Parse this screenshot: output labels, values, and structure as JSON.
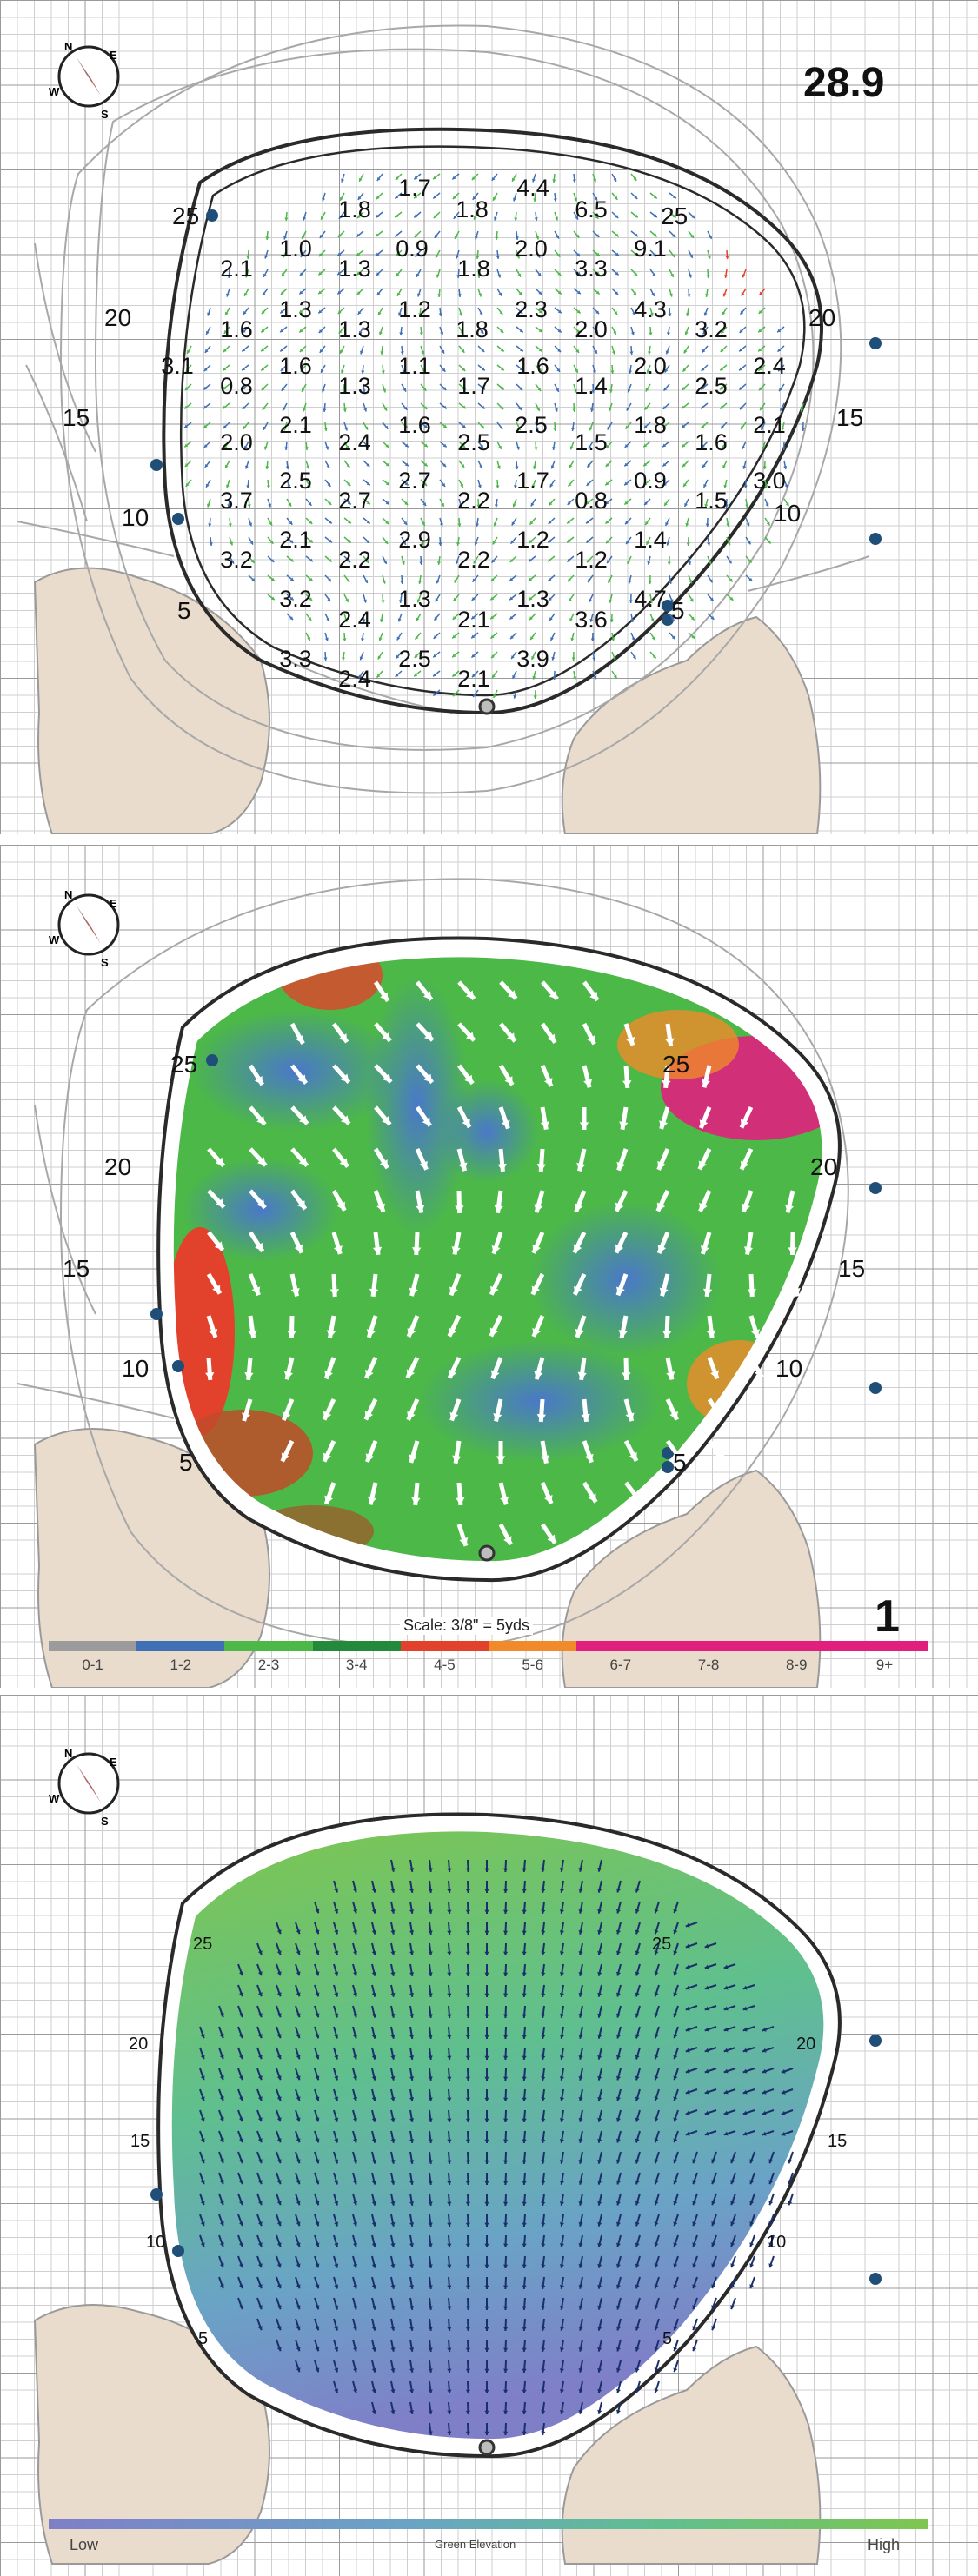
{
  "total_value": "28.9",
  "hole_number": "1",
  "compass": {
    "north": "N",
    "east": "E",
    "south": "S",
    "west": "W"
  },
  "scale_label": "Scale: 3/8\" = 5yds",
  "contour_labels_panel1": [
    "25",
    "25",
    "20",
    "20",
    "15",
    "15",
    "10",
    "10",
    "5",
    "5"
  ],
  "contour_labels_panel2": [
    "25",
    "25",
    "20",
    "20",
    "15",
    "15",
    "10",
    "10",
    "5",
    "5"
  ],
  "contour_labels_panel3": [
    "25",
    "25",
    "20",
    "20",
    "15",
    "15",
    "10",
    "10",
    "5",
    "5"
  ],
  "slope_values": [
    "1.7",
    "4.4",
    "1.8",
    "1.8",
    "6.5",
    "1.0",
    "0.9",
    "2.0",
    "9.1",
    "2.1",
    "1.3",
    "1.8",
    "3.3",
    "1.3",
    "2.3",
    "4.3",
    "1.6",
    "1.3",
    "1.2",
    "1.8",
    "2.0",
    "3.2",
    "3.1",
    "1.6",
    "1.1",
    "1.6",
    "2.0",
    "2.4",
    "0.8",
    "1.3",
    "1.7",
    "1.4",
    "2.5",
    "2.0",
    "2.1",
    "1.6",
    "2.5",
    "1.8",
    "2.1",
    "2.4",
    "2.5",
    "1.5",
    "1.6",
    "2.5",
    "2.7",
    "1.7",
    "0.9",
    "3.0",
    "3.7",
    "2.7",
    "2.2",
    "0.8",
    "1.5",
    "2.1",
    "2.9",
    "1.2",
    "1.4",
    "3.2",
    "2.2",
    "2.2",
    "1.2",
    "3.2",
    "1.3",
    "1.3",
    "4.7",
    "2.4",
    "2.1",
    "3.6",
    "3.3",
    "2.5",
    "3.9",
    "2.4",
    "2.1"
  ],
  "slope_legend": [
    {
      "label": "0-1",
      "color": "#9b9b9b"
    },
    {
      "label": "1-2",
      "color": "#3f6fb5"
    },
    {
      "label": "2-3",
      "color": "#4cb848"
    },
    {
      "label": "3-4",
      "color": "#238a3b"
    },
    {
      "label": "4-5",
      "color": "#e2422b"
    },
    {
      "label": "5-6",
      "color": "#f08a2a"
    },
    {
      "label": "6-7",
      "color": "#e0207c"
    },
    {
      "label": "7-8",
      "color": "#e0207c"
    },
    {
      "label": "8-9",
      "color": "#e0207c"
    },
    {
      "label": "9+",
      "color": "#e0207c"
    }
  ],
  "elevation_legend": {
    "low": "Low",
    "title": "Green Elevation",
    "high": "High"
  },
  "colors": {
    "green_outline": "#2a2a2a",
    "bunker": "#e9dccc",
    "contour": "#a8a8a8",
    "marker": "#1f4e79",
    "arrow_dark": "#1b2f6b"
  }
}
